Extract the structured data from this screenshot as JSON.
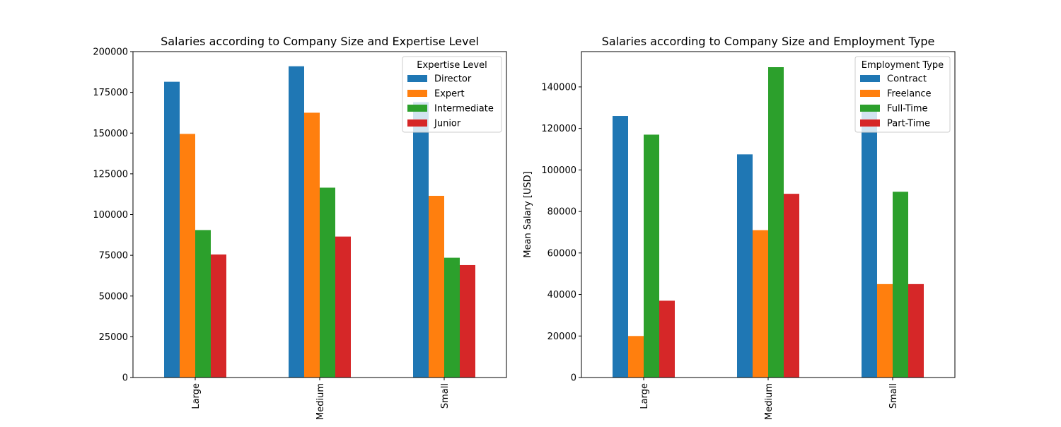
{
  "chart_data": [
    {
      "type": "bar",
      "title": "Salaries according to Company Size and Expertise Level",
      "xlabel": "",
      "ylabel": "",
      "categories": [
        "Large",
        "Medium",
        "Small"
      ],
      "ylim": [
        0,
        200000
      ],
      "yticks": [
        0,
        25000,
        50000,
        75000,
        100000,
        125000,
        150000,
        175000,
        200000
      ],
      "legend": {
        "title": "Expertise Level",
        "placement": "upper right"
      },
      "series": [
        {
          "name": "Director",
          "color": "#1f77b4",
          "values": [
            181500,
            191000,
            169000
          ]
        },
        {
          "name": "Expert",
          "color": "#ff7f0e",
          "values": [
            149500,
            162500,
            111500
          ]
        },
        {
          "name": "Intermediate",
          "color": "#2ca02c",
          "values": [
            90500,
            116500,
            73500
          ]
        },
        {
          "name": "Junior",
          "color": "#d62728",
          "values": [
            75500,
            86500,
            69000
          ]
        }
      ]
    },
    {
      "type": "bar",
      "title": "Salaries according to Company Size and Employment Type",
      "xlabel": "",
      "ylabel": "Mean Salary [USD]",
      "categories": [
        "Large",
        "Medium",
        "Small"
      ],
      "ylim": [
        0,
        157000
      ],
      "yticks": [
        0,
        20000,
        40000,
        60000,
        80000,
        100000,
        120000,
        140000
      ],
      "legend": {
        "title": "Employment Type",
        "placement": "upper right"
      },
      "series": [
        {
          "name": "Contract",
          "color": "#1f77b4",
          "values": [
            126000,
            107500,
            129000
          ]
        },
        {
          "name": "Freelance",
          "color": "#ff7f0e",
          "values": [
            20000,
            71000,
            45000
          ]
        },
        {
          "name": "Full-Time",
          "color": "#2ca02c",
          "values": [
            117000,
            149500,
            89500
          ]
        },
        {
          "name": "Part-Time",
          "color": "#d62728",
          "values": [
            37000,
            88500,
            45000
          ]
        }
      ]
    }
  ]
}
